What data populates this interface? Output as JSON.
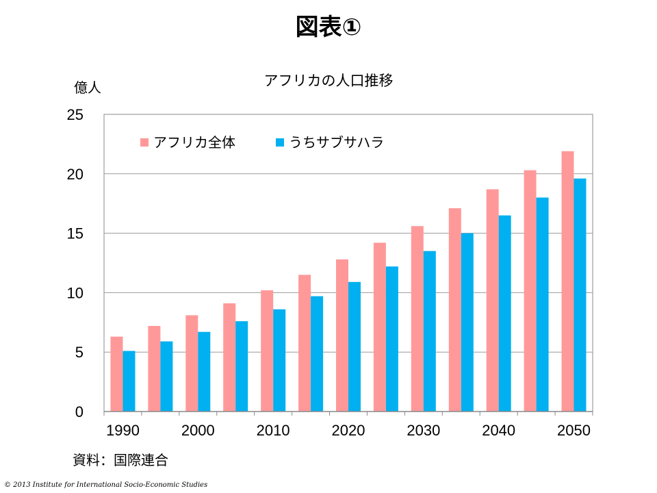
{
  "page": {
    "title": "図表①",
    "source": "資料：国際連合",
    "copyright": "© 2013 Institute for International Socio-Economic Studies"
  },
  "chart_data": {
    "type": "bar",
    "title": "アフリカの人口推移",
    "ylabel": "億人",
    "xlabel": "",
    "ylim": [
      0,
      25
    ],
    "yticks": [
      0,
      5,
      10,
      15,
      20,
      25
    ],
    "grid": true,
    "legend_position": "top-left",
    "categories": [
      "1990",
      "1995",
      "2000",
      "2005",
      "2010",
      "2015",
      "2020",
      "2025",
      "2030",
      "2035",
      "2040",
      "2045",
      "2050"
    ],
    "xtick_labels": [
      "1990",
      "",
      "2000",
      "",
      "2010",
      "",
      "2020",
      "",
      "2030",
      "",
      "2040",
      "",
      "2050"
    ],
    "series": [
      {
        "name": "アフリカ全体",
        "color": "#ff9999",
        "values": [
          6.3,
          7.2,
          8.1,
          9.1,
          10.2,
          11.5,
          12.8,
          14.2,
          15.6,
          17.1,
          18.7,
          20.3,
          21.9
        ]
      },
      {
        "name": "うちサブサハラ",
        "color": "#00b0f0",
        "values": [
          5.1,
          5.9,
          6.7,
          7.6,
          8.6,
          9.7,
          10.9,
          12.2,
          13.5,
          15.0,
          16.5,
          18.0,
          19.6
        ]
      }
    ]
  }
}
